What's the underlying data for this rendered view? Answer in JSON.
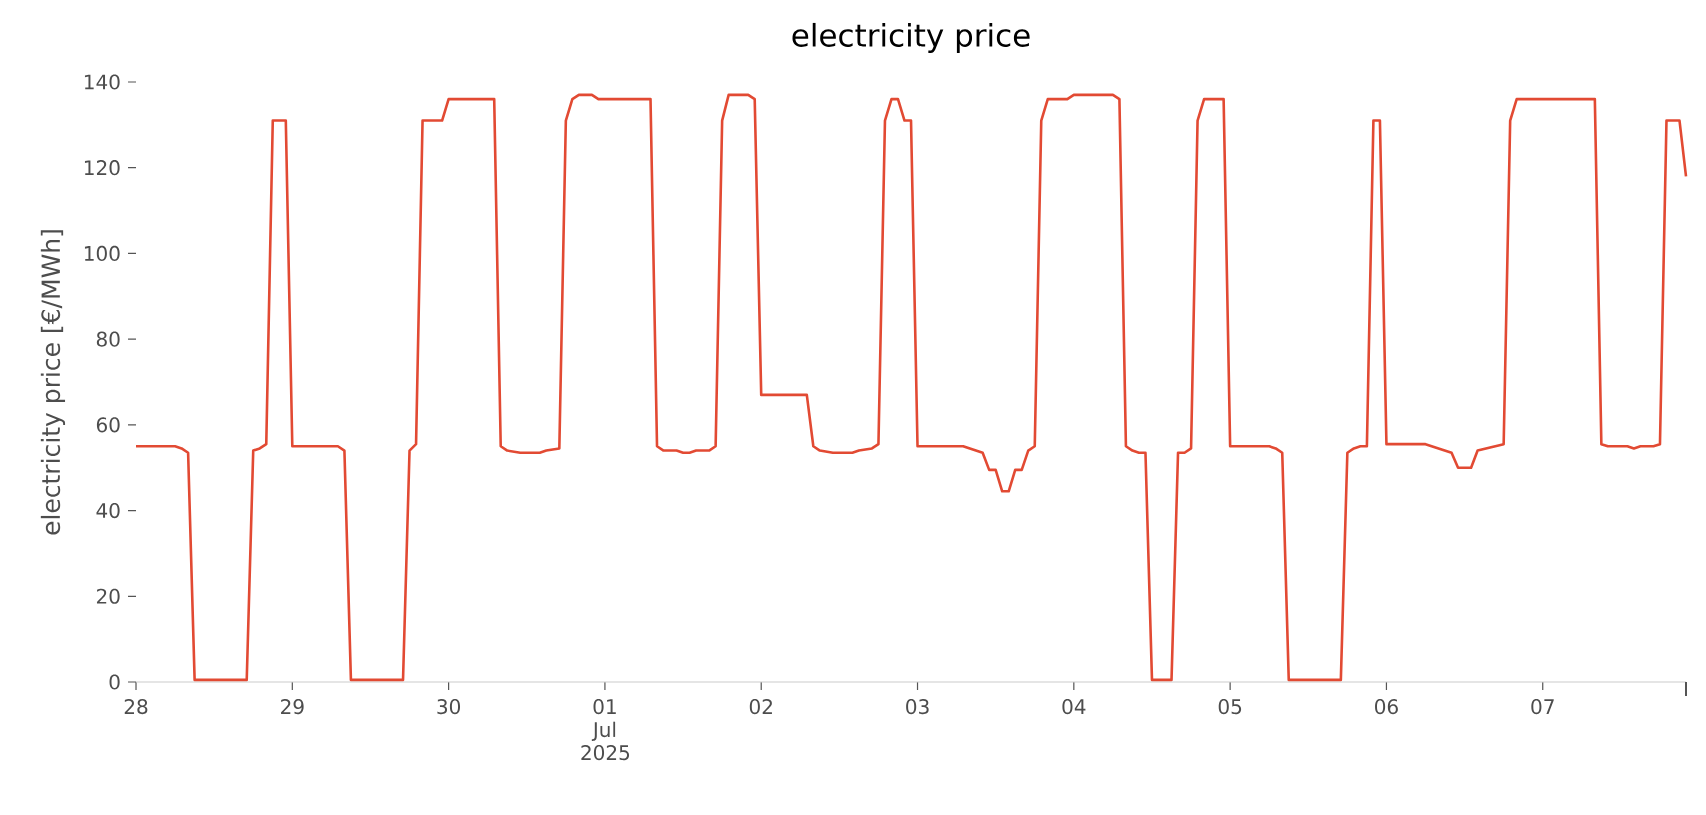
{
  "chart_data": {
    "type": "line",
    "title": "electricity price",
    "ylabel": "electricity price [€/MWh]",
    "color": "#e24a33",
    "x": [
      "2025-06-28T00:00",
      "2025-06-28T06:00",
      "2025-06-28T07:00",
      "2025-06-28T08:00",
      "2025-06-28T09:00",
      "2025-06-28T17:00",
      "2025-06-28T18:00",
      "2025-06-28T19:00",
      "2025-06-28T20:00",
      "2025-06-28T21:00",
      "2025-06-28T23:00",
      "2025-06-29T00:00",
      "2025-06-29T07:00",
      "2025-06-29T08:00",
      "2025-06-29T09:00",
      "2025-06-29T17:00",
      "2025-06-29T18:00",
      "2025-06-29T19:00",
      "2025-06-29T20:00",
      "2025-06-29T23:00",
      "2025-06-30T00:00",
      "2025-06-30T07:00",
      "2025-06-30T08:00",
      "2025-06-30T09:00",
      "2025-06-30T11:00",
      "2025-06-30T14:00",
      "2025-06-30T15:00",
      "2025-06-30T17:00",
      "2025-06-30T18:00",
      "2025-06-30T19:00",
      "2025-06-30T20:00",
      "2025-06-30T22:00",
      "2025-06-30T23:00",
      "2025-07-01T07:00",
      "2025-07-01T08:00",
      "2025-07-01T09:00",
      "2025-07-01T11:00",
      "2025-07-01T12:00",
      "2025-07-01T13:00",
      "2025-07-01T14:00",
      "2025-07-01T16:00",
      "2025-07-01T17:00",
      "2025-07-01T18:00",
      "2025-07-01T19:00",
      "2025-07-01T22:00",
      "2025-07-01T23:00",
      "2025-07-02T00:00",
      "2025-07-02T07:00",
      "2025-07-02T08:00",
      "2025-07-02T09:00",
      "2025-07-02T11:00",
      "2025-07-02T14:00",
      "2025-07-02T15:00",
      "2025-07-02T17:00",
      "2025-07-02T18:00",
      "2025-07-02T19:00",
      "2025-07-02T20:00",
      "2025-07-02T21:00",
      "2025-07-02T22:00",
      "2025-07-02T23:00",
      "2025-07-03T00:00",
      "2025-07-03T07:00",
      "2025-07-03T10:00",
      "2025-07-03T11:00",
      "2025-07-03T12:00",
      "2025-07-03T13:00",
      "2025-07-03T14:00",
      "2025-07-03T15:00",
      "2025-07-03T16:00",
      "2025-07-03T17:00",
      "2025-07-03T18:00",
      "2025-07-03T19:00",
      "2025-07-03T20:00",
      "2025-07-03T23:00",
      "2025-07-04T00:00",
      "2025-07-04T06:00",
      "2025-07-04T07:00",
      "2025-07-04T08:00",
      "2025-07-04T09:00",
      "2025-07-04T10:00",
      "2025-07-04T11:00",
      "2025-07-04T12:00",
      "2025-07-04T15:00",
      "2025-07-04T16:00",
      "2025-07-04T17:00",
      "2025-07-04T18:00",
      "2025-07-04T19:00",
      "2025-07-04T20:00",
      "2025-07-04T23:00",
      "2025-07-05T00:00",
      "2025-07-05T06:00",
      "2025-07-05T07:00",
      "2025-07-05T08:00",
      "2025-07-05T09:00",
      "2025-07-05T17:00",
      "2025-07-05T18:00",
      "2025-07-05T19:00",
      "2025-07-05T20:00",
      "2025-07-05T21:00",
      "2025-07-05T22:00",
      "2025-07-05T23:00",
      "2025-07-06T00:00",
      "2025-07-06T06:00",
      "2025-07-06T10:00",
      "2025-07-06T11:00",
      "2025-07-06T13:00",
      "2025-07-06T14:00",
      "2025-07-06T18:00",
      "2025-07-06T19:00",
      "2025-07-06T20:00",
      "2025-07-07T08:00",
      "2025-07-07T09:00",
      "2025-07-07T10:00",
      "2025-07-07T13:00",
      "2025-07-07T14:00",
      "2025-07-07T15:00",
      "2025-07-07T17:00",
      "2025-07-07T18:00",
      "2025-07-07T19:00",
      "2025-07-07T21:00",
      "2025-07-07T22:00"
    ],
    "values": [
      55,
      55,
      54.5,
      53.5,
      0.5,
      0.5,
      54,
      54.5,
      55.5,
      131,
      131,
      55,
      55,
      54,
      0.5,
      0.5,
      54,
      55.5,
      131,
      131,
      136,
      136,
      55,
      54,
      53.5,
      53.5,
      54,
      54.5,
      131,
      136,
      137,
      137,
      136,
      136,
      55,
      54,
      54,
      53.5,
      53.5,
      54,
      54,
      55,
      131,
      137,
      137,
      136,
      67,
      67,
      55,
      54,
      53.5,
      53.5,
      54,
      54.5,
      55.5,
      131,
      136,
      136,
      131,
      131,
      55,
      55,
      53.5,
      49.5,
      49.5,
      44.5,
      44.5,
      49.5,
      49.5,
      54,
      55,
      131,
      136,
      136,
      137,
      137,
      136,
      55,
      54,
      53.5,
      53.5,
      0.5,
      0.5,
      53.5,
      53.5,
      54.5,
      131,
      136,
      136,
      55,
      55,
      54.5,
      53.5,
      0.5,
      0.5,
      53.5,
      54.5,
      55,
      55,
      131,
      131,
      55.5,
      55.5,
      53.5,
      50,
      50,
      54,
      55.5,
      131,
      136,
      136,
      55.5,
      55,
      55,
      54.5,
      55,
      55,
      55.5,
      131,
      131,
      118
    ],
    "xlim": [
      "2025-06-28T00:00",
      "2025-07-07T22:00"
    ],
    "ylim": [
      0,
      140
    ],
    "xticks": [
      {
        "value": "2025-06-28T00:00",
        "label": "28"
      },
      {
        "value": "2025-06-29T00:00",
        "label": "29"
      },
      {
        "value": "2025-06-30T00:00",
        "label": "30"
      },
      {
        "value": "2025-07-01T00:00",
        "label": "01 Jul 2025"
      },
      {
        "value": "2025-07-02T00:00",
        "label": "02"
      },
      {
        "value": "2025-07-03T00:00",
        "label": "03"
      },
      {
        "value": "2025-07-04T00:00",
        "label": "04"
      },
      {
        "value": "2025-07-05T00:00",
        "label": "05"
      },
      {
        "value": "2025-07-06T00:00",
        "label": "06"
      },
      {
        "value": "2025-07-07T00:00",
        "label": "07"
      },
      {
        "value": "2025-07-07T22:00",
        "label": null
      }
    ],
    "yticks": [
      0,
      20,
      40,
      60,
      80,
      100,
      120,
      140
    ]
  }
}
